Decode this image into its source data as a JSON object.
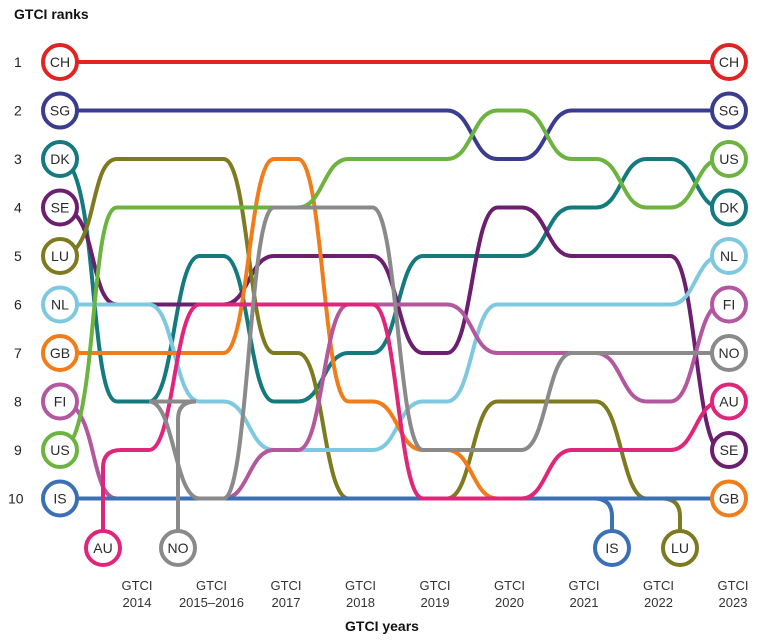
{
  "chart_data": {
    "type": "line",
    "title": "GTCI ranks",
    "xlabel": "GTCI years",
    "x": [
      "GTCI|2014",
      "GTCI|2015–2016",
      "GTCI|2017",
      "GTCI|2018",
      "GTCI|2019",
      "GTCI|2020",
      "GTCI|2021",
      "GTCI|2022",
      "GTCI|2023"
    ],
    "y_ticks": [
      1,
      2,
      3,
      4,
      5,
      6,
      7,
      8,
      9,
      10
    ],
    "series": [
      {
        "name": "CH",
        "color": "#e02424",
        "ranks": [
          1,
          1,
          1,
          1,
          1,
          1,
          1,
          1,
          1
        ],
        "start": 1,
        "end": 1
      },
      {
        "name": "SG",
        "color": "#3a3d8f",
        "ranks": [
          2,
          2,
          2,
          2,
          2,
          3,
          2,
          2,
          2
        ],
        "start": 2,
        "end": 2
      },
      {
        "name": "DK",
        "color": "#147a7d",
        "ranks": [
          8,
          5,
          8,
          7,
          5,
          5,
          4,
          3,
          4
        ],
        "start": 3,
        "end": 4
      },
      {
        "name": "SE",
        "color": "#6b1f6e",
        "ranks": [
          6,
          6,
          5,
          5,
          7,
          4,
          5,
          5,
          9
        ],
        "start": 4,
        "end": 9
      },
      {
        "name": "LU",
        "color": "#7d7a1f",
        "ranks": [
          3,
          3,
          7,
          10,
          10,
          8,
          8,
          11,
          11
        ],
        "start": 5,
        "end": 11
      },
      {
        "name": "NL",
        "color": "#7ec9e0",
        "ranks": [
          6,
          8,
          9,
          9,
          8,
          6,
          6,
          6,
          5
        ],
        "start": 6,
        "end": 5
      },
      {
        "name": "GB",
        "color": "#f07c1a",
        "ranks": [
          7,
          7,
          3,
          8,
          9,
          10,
          10,
          10,
          10
        ],
        "start": 7,
        "end": 10
      },
      {
        "name": "FI",
        "color": "#b3589e",
        "ranks": [
          10,
          10,
          9,
          6,
          6,
          7,
          7,
          8,
          6
        ],
        "start": 8,
        "end": 6
      },
      {
        "name": "US",
        "color": "#6cb33f",
        "ranks": [
          4,
          4,
          4,
          3,
          3,
          2,
          3,
          4,
          3
        ],
        "start": 9,
        "end": 3
      },
      {
        "name": "IS",
        "color": "#3b6fb6",
        "ranks": [
          10,
          10,
          10,
          10,
          10,
          10,
          11,
          11,
          11
        ],
        "start": 10,
        "end": 11
      },
      {
        "name": "AU",
        "color": "#e0267a",
        "ranks": [
          9,
          6,
          6,
          6,
          10,
          10,
          9,
          9,
          8
        ],
        "start": 11,
        "end": 8
      },
      {
        "name": "NO",
        "color": "#8a8a8a",
        "ranks": [
          8,
          10,
          4,
          4,
          9,
          9,
          7,
          7,
          7
        ],
        "start": 11,
        "end": 7
      }
    ],
    "legend": "none",
    "grid": false
  }
}
